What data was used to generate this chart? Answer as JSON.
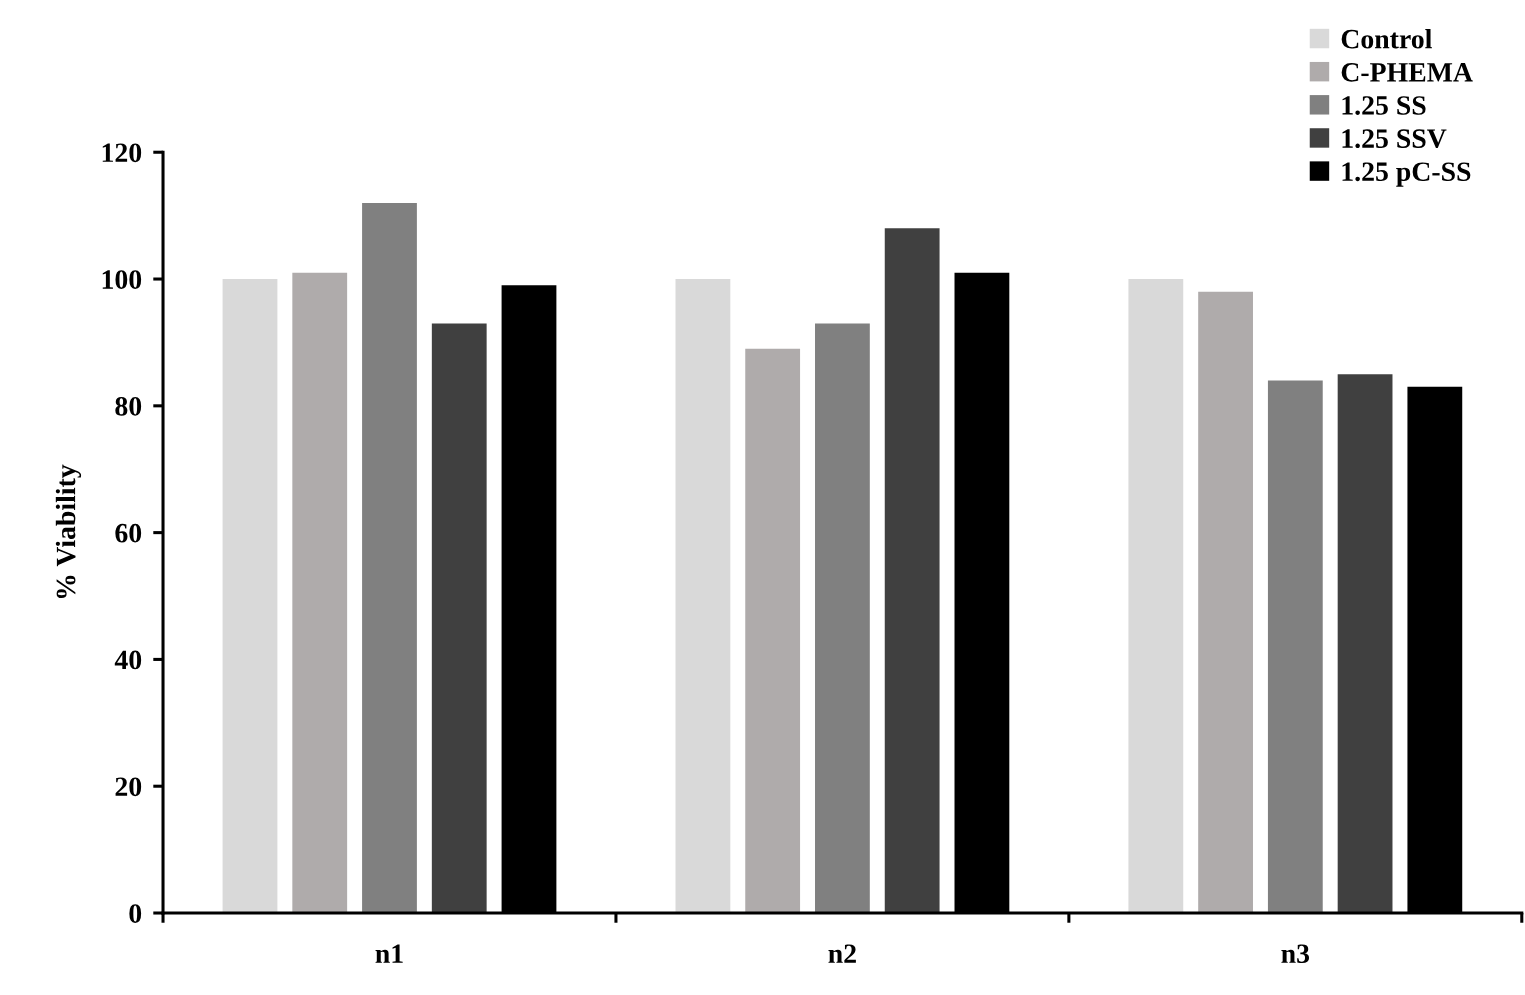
{
  "chart_data": {
    "type": "bar",
    "ylabel": "% Viability",
    "categories": [
      "n1",
      "n2",
      "n3"
    ],
    "series": [
      {
        "name": "Control",
        "color": "#d9d9d9",
        "values": [
          100,
          100,
          100
        ]
      },
      {
        "name": "C-PHEMA",
        "color": "#afabab",
        "values": [
          101,
          89,
          98
        ]
      },
      {
        "name": "1.25 SS",
        "color": "#808080",
        "values": [
          112,
          93,
          84
        ]
      },
      {
        "name": "1.25 SSV",
        "color": "#404040",
        "values": [
          93,
          108,
          85
        ]
      },
      {
        "name": "1.25 pC-SS",
        "color": "#000000",
        "values": [
          99,
          101,
          83
        ]
      }
    ],
    "ylim": [
      0,
      120
    ],
    "yticks": [
      0,
      20,
      40,
      60,
      80,
      100,
      120
    ],
    "grid": false,
    "legend": "top right"
  }
}
